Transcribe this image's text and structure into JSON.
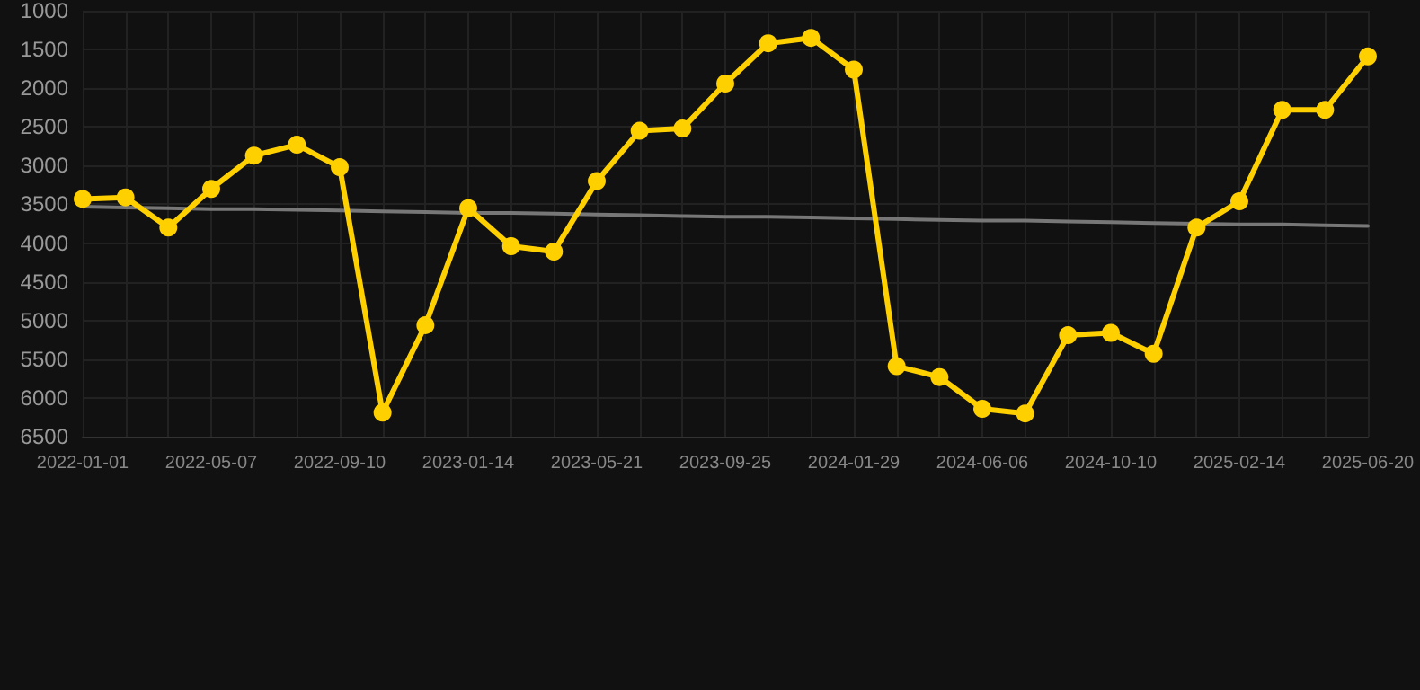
{
  "chart_data": {
    "type": "line",
    "categories": [
      "2022-01-01",
      null,
      null,
      "2022-05-07",
      null,
      null,
      "2022-09-10",
      null,
      null,
      "2023-01-14",
      null,
      null,
      "2023-05-21",
      null,
      null,
      "2023-09-25",
      null,
      null,
      "2024-01-29",
      null,
      null,
      "2024-06-06",
      null,
      null,
      "2024-10-10",
      null,
      null,
      "2025-02-14",
      null,
      null,
      "2025-06-20"
    ],
    "series": [
      {
        "color": "#ffd000",
        "values": [
          3430,
          3410,
          3800,
          3300,
          2870,
          2730,
          3020,
          6190,
          5060,
          3550,
          4040,
          4110,
          3200,
          2550,
          2520,
          1940,
          1420,
          1350,
          1760,
          5590,
          5730,
          6140,
          6200,
          5190,
          5160,
          5430,
          3800,
          3460,
          2280,
          2280,
          1590
        ]
      },
      {
        "type": "line",
        "color": "#777777",
        "marker": "none",
        "values": [
          3530,
          3540,
          3550,
          3560,
          3560,
          3570,
          3580,
          3590,
          3600,
          3610,
          3610,
          3620,
          3630,
          3640,
          3650,
          3660,
          3660,
          3670,
          3680,
          3690,
          3700,
          3710,
          3710,
          3720,
          3730,
          3740,
          3750,
          3760,
          3760,
          3770,
          3780
        ]
      }
    ],
    "ylim": [
      6500,
      1000
    ],
    "yticks": [
      1000,
      1500,
      2000,
      2500,
      3000,
      3500,
      4000,
      4500,
      5000,
      5500,
      6000,
      6500
    ],
    "grid": true,
    "marker": "circle"
  }
}
